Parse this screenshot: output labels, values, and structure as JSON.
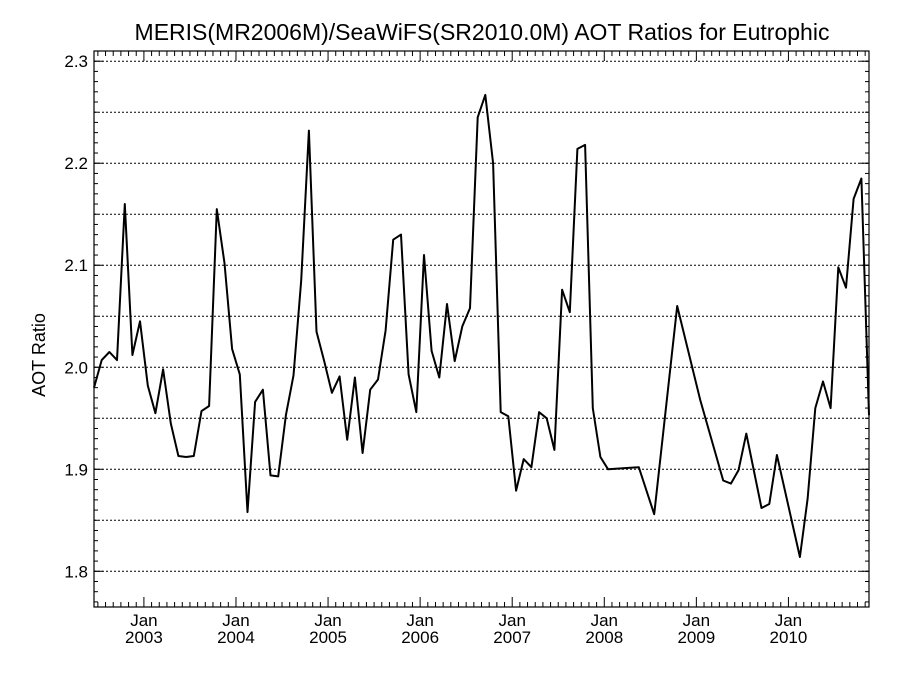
{
  "chart_data": {
    "type": "line",
    "title": "MERIS(MR2006M)/SeaWiFS(SR2010.0M)  AOT Ratios for Eutrophic",
    "xlabel": "",
    "ylabel": "AOT Ratio",
    "xlim": [
      2002.458,
      2010.875
    ],
    "ylim": [
      1.765,
      2.31
    ],
    "y_ticks": [
      1.8,
      1.9,
      2.0,
      2.1,
      2.2,
      2.3
    ],
    "y_tick_labels": [
      "1.8",
      "1.9",
      "2.0",
      "2.1",
      "2.2",
      "2.3"
    ],
    "y_gridlines": [
      1.8,
      1.85,
      1.9,
      1.95,
      2.0,
      2.05,
      2.1,
      2.15,
      2.2,
      2.25,
      2.3
    ],
    "x_ticks": [
      {
        "x": 2003.0,
        "month": "Jan",
        "year": "2003"
      },
      {
        "x": 2004.0,
        "month": "Jan",
        "year": "2004"
      },
      {
        "x": 2005.0,
        "month": "Jan",
        "year": "2005"
      },
      {
        "x": 2006.0,
        "month": "Jan",
        "year": "2006"
      },
      {
        "x": 2007.0,
        "month": "Jan",
        "year": "2007"
      },
      {
        "x": 2008.0,
        "month": "Jan",
        "year": "2008"
      },
      {
        "x": 2009.0,
        "month": "Jan",
        "year": "2009"
      },
      {
        "x": 2010.0,
        "month": "Jan",
        "year": "2010"
      }
    ],
    "grid": "horizontal dotted",
    "legend": "none",
    "series": [
      {
        "color": "#000000",
        "points": [
          [
            2002.458,
            1.98
          ],
          [
            2002.542,
            2.007
          ],
          [
            2002.625,
            2.015
          ],
          [
            2002.708,
            2.007
          ],
          [
            2002.792,
            2.16
          ],
          [
            2002.875,
            2.012
          ],
          [
            2002.958,
            2.045
          ],
          [
            2003.042,
            1.982
          ],
          [
            2003.125,
            1.955
          ],
          [
            2003.208,
            1.998
          ],
          [
            2003.292,
            1.945
          ],
          [
            2003.375,
            1.913
          ],
          [
            2003.458,
            1.912
          ],
          [
            2003.542,
            1.913
          ],
          [
            2003.625,
            1.957
          ],
          [
            2003.708,
            1.962
          ],
          [
            2003.792,
            2.155
          ],
          [
            2003.875,
            2.102
          ],
          [
            2003.958,
            2.018
          ],
          [
            2004.042,
            1.993
          ],
          [
            2004.125,
            1.858
          ],
          [
            2004.208,
            1.966
          ],
          [
            2004.292,
            1.978
          ],
          [
            2004.375,
            1.894
          ],
          [
            2004.458,
            1.893
          ],
          [
            2004.542,
            1.953
          ],
          [
            2004.625,
            1.992
          ],
          [
            2004.708,
            2.085
          ],
          [
            2004.792,
            2.232
          ],
          [
            2004.875,
            2.035
          ],
          [
            2004.958,
            2.006
          ],
          [
            2005.042,
            1.975
          ],
          [
            2005.125,
            1.991
          ],
          [
            2005.208,
            1.929
          ],
          [
            2005.292,
            1.99
          ],
          [
            2005.375,
            1.916
          ],
          [
            2005.458,
            1.978
          ],
          [
            2005.542,
            1.988
          ],
          [
            2005.625,
            2.036
          ],
          [
            2005.708,
            2.125
          ],
          [
            2005.792,
            2.13
          ],
          [
            2005.875,
            1.993
          ],
          [
            2005.958,
            1.956
          ],
          [
            2006.042,
            2.11
          ],
          [
            2006.125,
            2.016
          ],
          [
            2006.208,
            1.99
          ],
          [
            2006.292,
            2.062
          ],
          [
            2006.375,
            2.006
          ],
          [
            2006.458,
            2.04
          ],
          [
            2006.542,
            2.058
          ],
          [
            2006.625,
            2.245
          ],
          [
            2006.708,
            2.267
          ],
          [
            2006.792,
            2.2
          ],
          [
            2006.875,
            1.956
          ],
          [
            2006.958,
            1.952
          ],
          [
            2007.042,
            1.879
          ],
          [
            2007.125,
            1.91
          ],
          [
            2007.208,
            1.902
          ],
          [
            2007.292,
            1.956
          ],
          [
            2007.375,
            1.95
          ],
          [
            2007.458,
            1.919
          ],
          [
            2007.542,
            2.076
          ],
          [
            2007.625,
            2.054
          ],
          [
            2007.708,
            2.214
          ],
          [
            2007.792,
            2.218
          ],
          [
            2007.875,
            1.96
          ],
          [
            2007.958,
            1.912
          ],
          [
            2008.042,
            1.9
          ],
          [
            2008.375,
            1.902
          ],
          [
            2008.542,
            1.856
          ],
          [
            2008.792,
            2.06
          ],
          [
            2009.042,
            1.968
          ],
          [
            2009.292,
            1.889
          ],
          [
            2009.375,
            1.886
          ],
          [
            2009.458,
            1.899
          ],
          [
            2009.542,
            1.935
          ],
          [
            2009.708,
            1.862
          ],
          [
            2009.792,
            1.866
          ],
          [
            2009.875,
            1.914
          ],
          [
            2010.125,
            1.814
          ],
          [
            2010.208,
            1.871
          ],
          [
            2010.292,
            1.96
          ],
          [
            2010.375,
            1.986
          ],
          [
            2010.458,
            1.96
          ],
          [
            2010.542,
            2.098
          ],
          [
            2010.625,
            2.078
          ],
          [
            2010.708,
            2.165
          ],
          [
            2010.792,
            2.185
          ],
          [
            2010.875,
            1.953
          ]
        ]
      }
    ]
  }
}
